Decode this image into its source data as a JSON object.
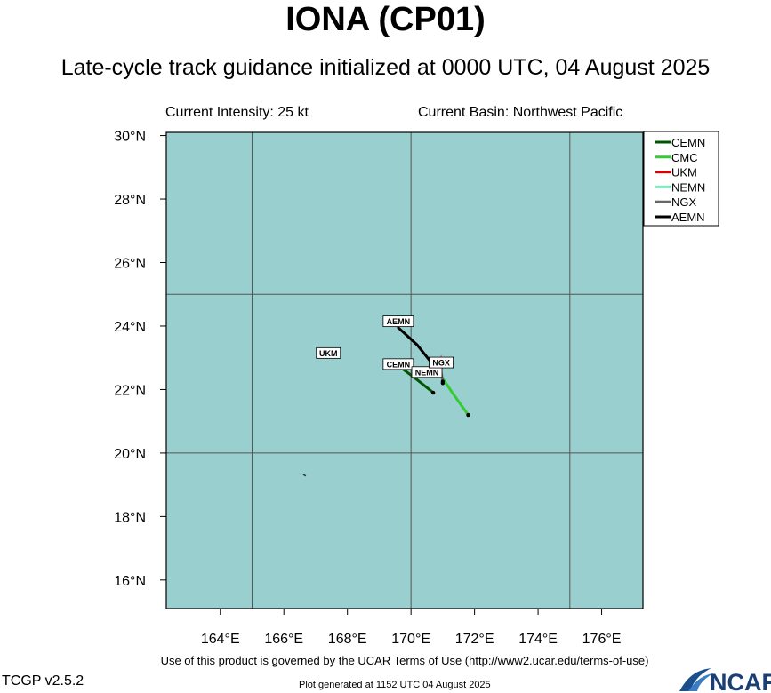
{
  "header": {
    "title": "IONA (CP01)",
    "subtitle": "Late-cycle track guidance initialized at 0000 UTC, 04 August 2025",
    "intensity": "Current Intensity: 25 kt",
    "basin": "Current Basin: Northwest Pacific"
  },
  "footer": {
    "terms": "Use of this product is governed by the UCAR Terms of Use (http://www2.ucar.edu/terms-of-use)",
    "version": "TCGP v2.5.2",
    "generated": "Plot generated at 1152 UTC   04 August 2025",
    "logo_text": "NCAR"
  },
  "colors": {
    "ocean": "#99cfcf",
    "grid": "#555555",
    "land": "#333333"
  },
  "axes": {
    "lon_range": [
      162.3,
      177.3
    ],
    "lat_range": [
      15.1,
      30.1
    ],
    "lon_ticks": [
      164,
      166,
      168,
      170,
      172,
      174,
      176
    ],
    "lon_tick_labels": [
      "164°E",
      "166°E",
      "168°E",
      "170°E",
      "172°E",
      "174°E",
      "176°E"
    ],
    "lat_ticks": [
      16,
      18,
      20,
      22,
      24,
      26,
      28,
      30
    ],
    "lat_tick_labels": [
      "16°N",
      "18°N",
      "20°N",
      "22°N",
      "24°N",
      "26°N",
      "28°N",
      "30°N"
    ],
    "grid_lon": [
      165,
      170,
      175
    ],
    "grid_lat": [
      20,
      25
    ]
  },
  "legend": {
    "placement": "top-right",
    "entries": [
      {
        "name": "CEMN",
        "color": "#005500"
      },
      {
        "name": "CMC",
        "color": "#33cc33"
      },
      {
        "name": "UKM",
        "color": "#dd0000"
      },
      {
        "name": "NEMN",
        "color": "#77eebb"
      },
      {
        "name": "NGX",
        "color": "#666666"
      },
      {
        "name": "AEMN",
        "color": "#000000"
      }
    ]
  },
  "current_position": {
    "lon": 170.95,
    "lat": 22.75
  },
  "land_point": {
    "lon": 166.65,
    "lat": 19.3
  },
  "tracks": [
    {
      "name": "CEMN",
      "color": "#005500",
      "points": [
        [
          169.6,
          22.75
        ],
        [
          170.2,
          22.3
        ],
        [
          170.7,
          21.9
        ]
      ],
      "label_at": [
        169.6,
        22.8
      ]
    },
    {
      "name": "CMC",
      "color": "#33cc33",
      "points": [
        [
          170.9,
          22.5
        ],
        [
          171.3,
          21.9
        ],
        [
          171.8,
          21.2
        ]
      ],
      "label_at": null
    },
    {
      "name": "UKM",
      "color": "#dd0000",
      "points": [],
      "label_at": [
        167.4,
        23.15
      ]
    },
    {
      "name": "NEMN",
      "color": "#77eebb",
      "points": [
        [
          170.9,
          22.7
        ],
        [
          171.0,
          22.2
        ]
      ],
      "label_at": [
        170.5,
        22.55
      ]
    },
    {
      "name": "NGX",
      "color": "#666666",
      "points": [
        [
          170.9,
          22.8
        ],
        [
          171.0,
          22.25
        ]
      ],
      "label_at": [
        170.95,
        22.85
      ]
    },
    {
      "name": "AEMN",
      "color": "#000000",
      "points": [
        [
          169.6,
          23.95
        ],
        [
          170.2,
          23.4
        ],
        [
          170.6,
          22.9
        ],
        [
          170.7,
          22.55
        ]
      ],
      "label_at": [
        169.6,
        24.15
      ]
    }
  ]
}
